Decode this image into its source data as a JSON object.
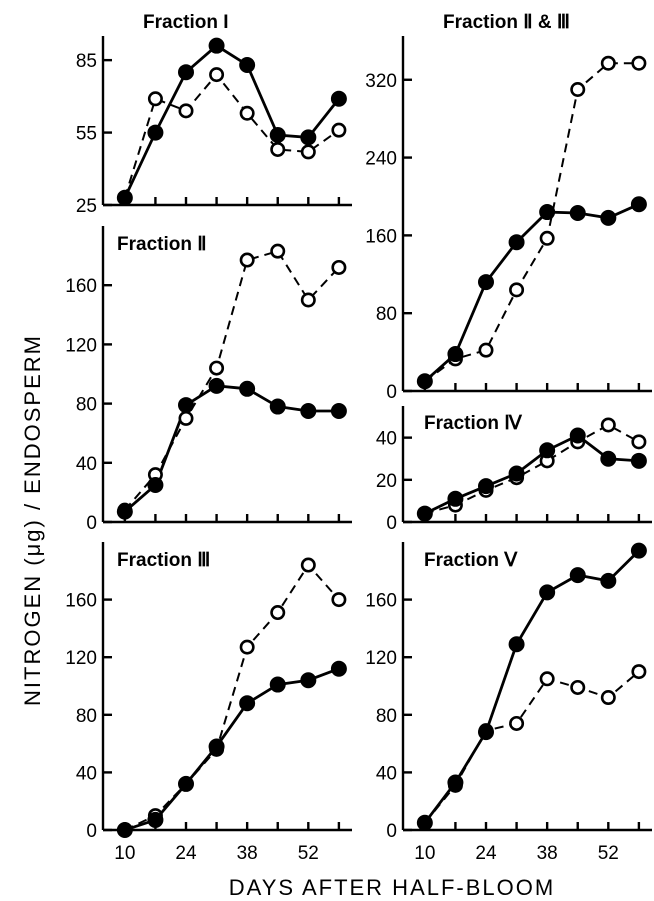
{
  "figure": {
    "ylabel": "NITROGEN (μg) / ENDOSPERM",
    "xlabel": "DAYS AFTER HALF-BLOOM",
    "x_ticks": [
      "10",
      "24",
      "38",
      "52"
    ]
  },
  "chart_data": [
    {
      "type": "line",
      "title": "Fraction I",
      "x": [
        10,
        17,
        24,
        31,
        38,
        45,
        52,
        59
      ],
      "ylim": [
        25,
        95
      ],
      "y_ticks": [
        25,
        55,
        85
      ],
      "series": [
        {
          "marker": "filled",
          "values": [
            28,
            55,
            80,
            91,
            83,
            54,
            53,
            69
          ]
        },
        {
          "marker": "open",
          "values": [
            28,
            69,
            64,
            79,
            63,
            48,
            47,
            56
          ]
        }
      ]
    },
    {
      "type": "line",
      "title": "Fraction Ⅱ",
      "x": [
        10,
        17,
        24,
        31,
        38,
        45,
        52,
        59
      ],
      "ylim": [
        0,
        200
      ],
      "y_ticks": [
        0,
        40,
        80,
        120,
        160
      ],
      "series": [
        {
          "marker": "filled",
          "values": [
            7,
            25,
            79,
            92,
            90,
            78,
            75,
            75
          ]
        },
        {
          "marker": "open",
          "values": [
            8,
            32,
            70,
            104,
            177,
            183,
            150,
            172
          ]
        }
      ]
    },
    {
      "type": "line",
      "title": "Fraction Ⅲ",
      "x": [
        10,
        17,
        24,
        31,
        38,
        45,
        52,
        59
      ],
      "ylim": [
        0,
        200
      ],
      "y_ticks": [
        0,
        40,
        80,
        120,
        160
      ],
      "series": [
        {
          "marker": "filled",
          "values": [
            0,
            7,
            32,
            58,
            88,
            101,
            104,
            112
          ]
        },
        {
          "marker": "open",
          "values": [
            0,
            10,
            32,
            56,
            127,
            151,
            184,
            160
          ]
        }
      ]
    },
    {
      "type": "line",
      "title": "Fraction Ⅱ & Ⅲ",
      "x": [
        10,
        17,
        24,
        31,
        38,
        45,
        52,
        59
      ],
      "ylim": [
        0,
        365
      ],
      "y_ticks": [
        0,
        80,
        160,
        240,
        320
      ],
      "series": [
        {
          "marker": "filled",
          "values": [
            10,
            38,
            112,
            153,
            184,
            183,
            178,
            192
          ]
        },
        {
          "marker": "open",
          "values": [
            10,
            33,
            42,
            104,
            157,
            310,
            337,
            337
          ]
        }
      ]
    },
    {
      "type": "line",
      "title": "Fraction Ⅳ",
      "x": [
        10,
        17,
        24,
        31,
        38,
        45,
        52,
        59
      ],
      "ylim": [
        0,
        55
      ],
      "y_ticks": [
        0,
        20,
        40
      ],
      "series": [
        {
          "marker": "filled",
          "values": [
            4,
            11,
            17,
            23,
            34,
            41,
            30,
            29
          ]
        },
        {
          "marker": "open",
          "values": [
            4,
            8,
            15,
            21,
            29,
            38,
            46,
            38
          ]
        }
      ]
    },
    {
      "type": "line",
      "title": "Fraction Ⅴ",
      "x": [
        10,
        17,
        24,
        31,
        38,
        45,
        52,
        59
      ],
      "ylim": [
        0,
        200
      ],
      "y_ticks": [
        0,
        40,
        80,
        120,
        160
      ],
      "series": [
        {
          "marker": "filled",
          "values": [
            5,
            33,
            68,
            129,
            165,
            177,
            173,
            194
          ]
        },
        {
          "marker": "open",
          "values": [
            5,
            31,
            69,
            74,
            105,
            99,
            92,
            110
          ]
        }
      ]
    }
  ]
}
